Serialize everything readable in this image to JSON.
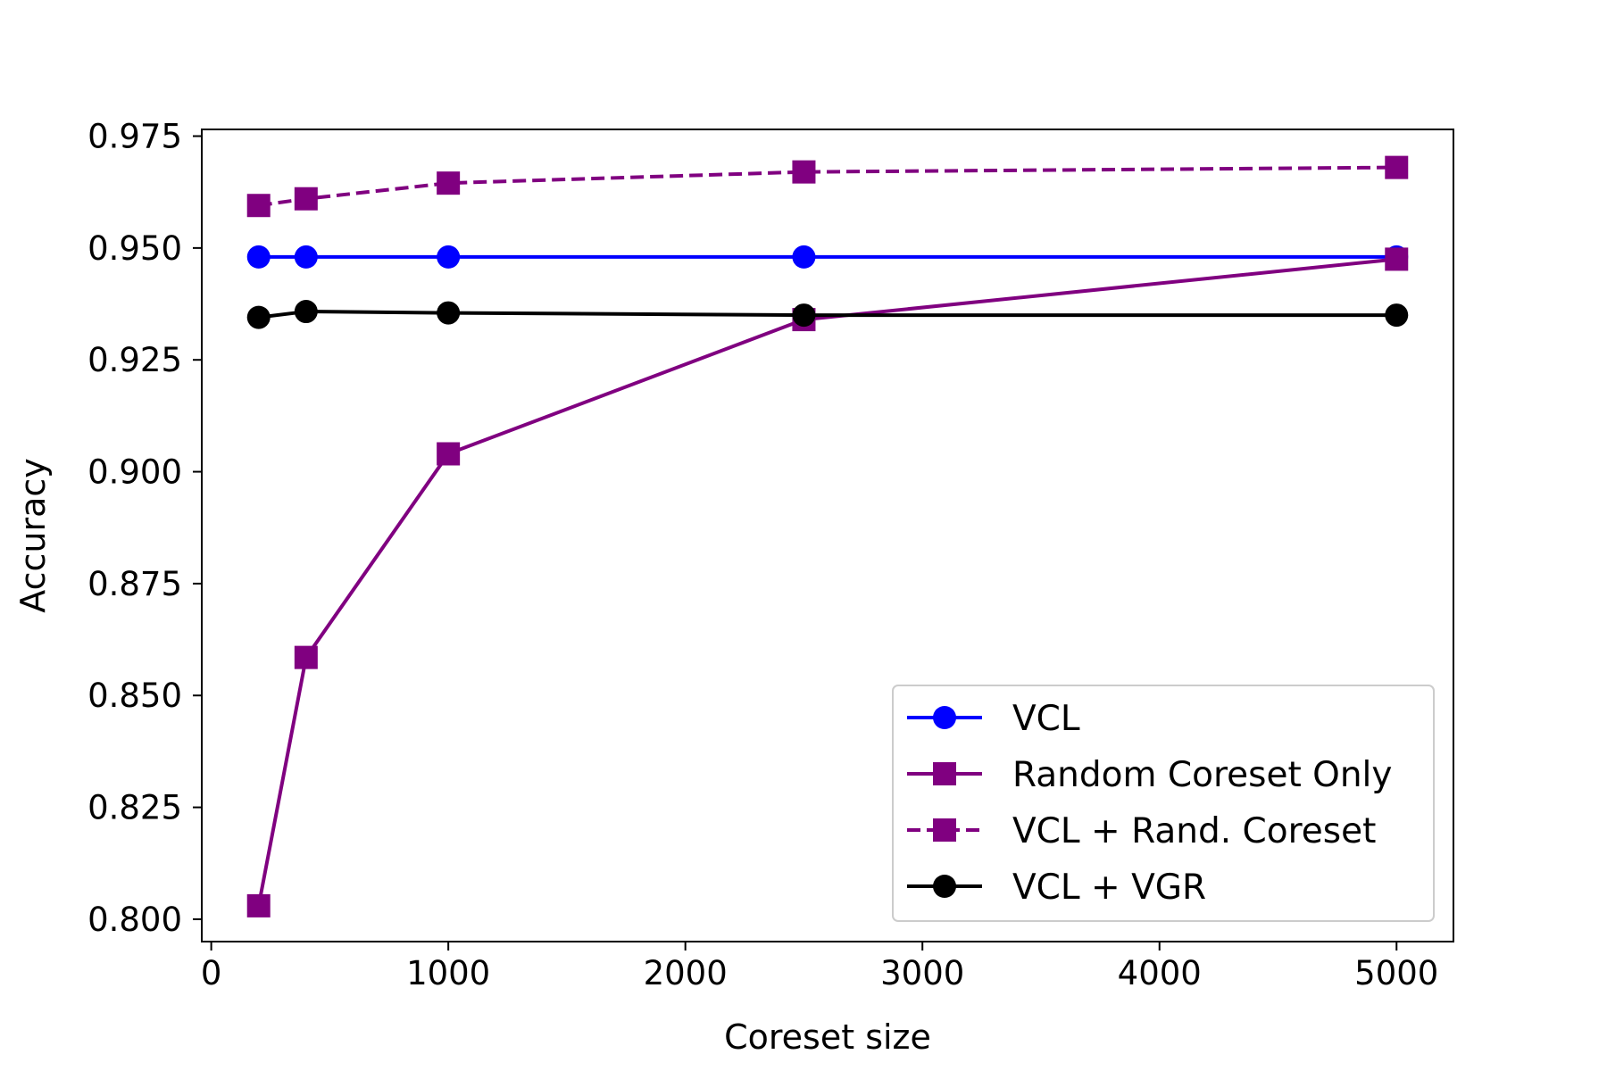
{
  "chart_data": {
    "type": "line",
    "title": "",
    "xlabel": "Coreset size",
    "ylabel": "Accuracy",
    "xlim": [
      -40,
      5240
    ],
    "ylim": [
      0.795,
      0.9765
    ],
    "xticks": [
      0,
      1000,
      2000,
      3000,
      4000,
      5000
    ],
    "yticks": [
      0.8,
      0.825,
      0.85,
      0.875,
      0.9,
      0.925,
      0.95,
      0.975
    ],
    "xtick_labels": [
      "0",
      "1000",
      "2000",
      "3000",
      "4000",
      "5000"
    ],
    "ytick_labels": [
      "0.800",
      "0.825",
      "0.850",
      "0.875",
      "0.900",
      "0.925",
      "0.950",
      "0.975"
    ],
    "grid": false,
    "legend_position": "lower-right",
    "x": [
      200,
      400,
      1000,
      2500,
      5000
    ],
    "series": [
      {
        "name": "VCL",
        "values": [
          0.948,
          0.948,
          0.948,
          0.948,
          0.948
        ],
        "color": "#0000ff",
        "marker": "circle",
        "dash": "solid"
      },
      {
        "name": "Random Coreset Only",
        "values": [
          0.803,
          0.8585,
          0.904,
          0.934,
          0.9475
        ],
        "color": "#800080",
        "marker": "square",
        "dash": "solid"
      },
      {
        "name": "VCL + Rand. Coreset",
        "values": [
          0.9595,
          0.961,
          0.9645,
          0.967,
          0.968
        ],
        "color": "#800080",
        "marker": "square",
        "dash": "dashed"
      },
      {
        "name": "VCL + VGR",
        "values": [
          0.9345,
          0.9358,
          0.9355,
          0.935,
          0.935
        ],
        "color": "#000000",
        "marker": "circle",
        "dash": "solid"
      }
    ]
  }
}
